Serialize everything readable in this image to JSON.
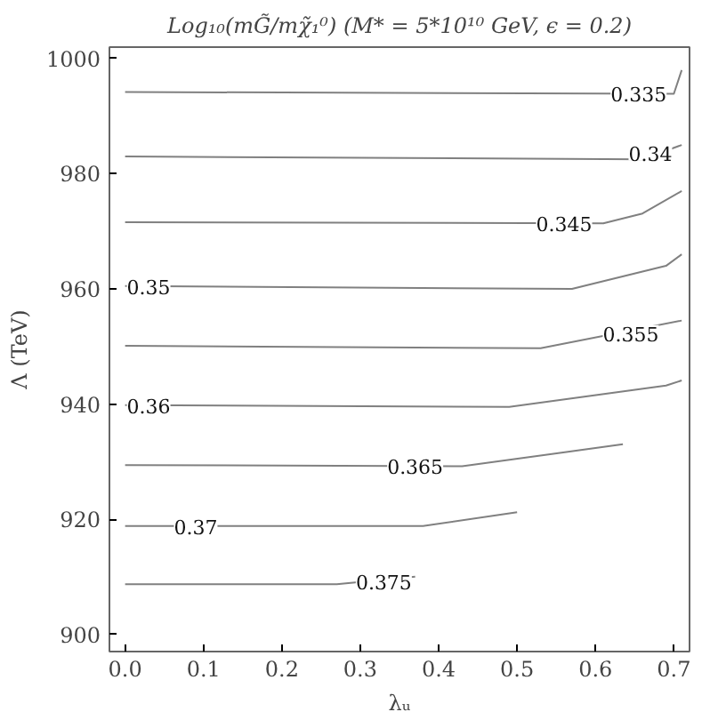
{
  "chart_data": {
    "type": "line",
    "title": "Log₁₀(mG̃/mχ̃₁⁰) (M* = 5*10¹⁰ GeV, ϵ = 0.2)",
    "xlabel": "λᵤ",
    "ylabel": "Λ (TeV)",
    "xlim": [
      -0.02,
      0.72
    ],
    "ylim": [
      897,
      1002
    ],
    "xticks": [
      {
        "value": 0,
        "label": "0.0"
      },
      0.1,
      0.2,
      0.3,
      0.4,
      0.5,
      0.6,
      0.7
    ],
    "yticks": [
      900,
      920,
      940,
      960,
      980,
      1000
    ],
    "grid": false,
    "series": [
      {
        "color": "#808080",
        "x": [
          0,
          0.7,
          0.71
        ],
        "values": [
          994.2,
          993.9,
          998
        ]
      },
      {
        "color": "#808080",
        "x": [
          0,
          0.66,
          0.71
        ],
        "values": [
          983.0,
          982.5,
          985
        ]
      },
      {
        "color": "#808080",
        "x": [
          0,
          0.61,
          0.66,
          0.71
        ],
        "values": [
          971.6,
          971.4,
          973.1,
          977
        ]
      },
      {
        "color": "#808080",
        "x": [
          0,
          0.57,
          0.69,
          0.71
        ],
        "values": [
          960.5,
          960.0,
          964,
          966
        ]
      },
      {
        "color": "#808080",
        "x": [
          0,
          0.53,
          0.71
        ],
        "values": [
          950.1,
          949.7,
          954.5
        ]
      },
      {
        "color": "#808080",
        "x": [
          0,
          0.49,
          0.69,
          0.71
        ],
        "values": [
          939.8,
          939.5,
          943.2,
          944.1
        ]
      },
      {
        "color": "#808080",
        "x": [
          0,
          0.43,
          0.635
        ],
        "values": [
          929.4,
          929.2,
          933
        ]
      },
      {
        "color": "#808080",
        "x": [
          0,
          0.38,
          0.5
        ],
        "values": [
          918.8,
          918.8,
          921.2
        ]
      },
      {
        "color": "#808080",
        "x": [
          0,
          0.27,
          0.37
        ],
        "values": [
          908.7,
          908.7,
          910
        ]
      }
    ],
    "annotations": [
      {
        "text": "0.335",
        "x": 0.655,
        "y": 993.9
      },
      {
        "text": "0.34",
        "x": 0.67,
        "y": 983.7
      },
      {
        "text": "0.345",
        "x": 0.56,
        "y": 971.4
      },
      {
        "text": "0.35",
        "x": 0.03,
        "y": 960.4
      },
      {
        "text": "0.355",
        "x": 0.645,
        "y": 952.3
      },
      {
        "text": "0.36",
        "x": 0.03,
        "y": 939.8
      },
      {
        "text": "0.365",
        "x": 0.37,
        "y": 929.3
      },
      {
        "text": "0.37",
        "x": 0.09,
        "y": 918.8
      },
      {
        "text": "0.375",
        "x": 0.33,
        "y": 909.2
      }
    ]
  }
}
